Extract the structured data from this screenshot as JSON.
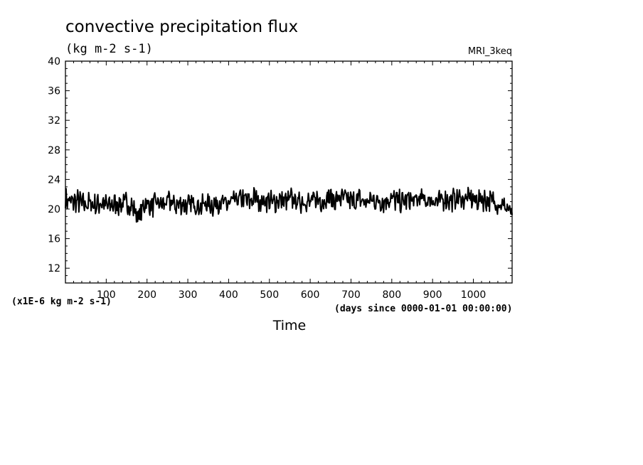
{
  "chart_data": {
    "type": "line",
    "title": "convective precipitation flux",
    "subtitle": "(kg m-2 s-1)",
    "model_label": "MRI_3keq",
    "xlabel": "Time",
    "x_units_note": "(days since 0000-01-01 00:00:00)",
    "y_scale_note": "(x1E-6 kg m-2 s-1)",
    "xlim": [
      0,
      1095
    ],
    "ylim": [
      10,
      40
    ],
    "x_ticks": [
      100,
      200,
      300,
      400,
      500,
      600,
      700,
      800,
      900,
      1000
    ],
    "y_ticks": [
      12,
      16,
      20,
      24,
      28,
      32,
      36,
      40
    ],
    "grid": false,
    "series": [
      {
        "x": [
          0,
          15,
          30,
          45,
          60,
          75,
          90,
          105,
          120,
          135,
          150,
          165,
          180,
          195,
          210,
          225,
          240,
          255,
          270,
          285,
          300,
          315,
          330,
          345,
          360,
          375,
          390,
          405,
          420,
          435,
          450,
          465,
          480,
          495,
          510,
          525,
          540,
          555,
          570,
          585,
          600,
          615,
          630,
          645,
          660,
          675,
          690,
          705,
          720,
          735,
          750,
          765,
          780,
          795,
          810,
          825,
          840,
          855,
          870,
          885,
          900,
          915,
          930,
          945,
          960,
          975,
          990,
          1005,
          1020,
          1035,
          1050,
          1065,
          1080,
          1095
        ],
        "values": [
          21.3,
          20.9,
          21.1,
          20.6,
          20.8,
          20.5,
          20.9,
          20.4,
          20.7,
          20.6,
          20.8,
          20.3,
          18.8,
          20.9,
          20.4,
          20.8,
          20.6,
          21.1,
          20.5,
          20.7,
          20.4,
          20.9,
          20.3,
          20.8,
          20.5,
          21.0,
          20.6,
          20.8,
          21.2,
          21.4,
          21.0,
          21.6,
          20.9,
          21.2,
          20.8,
          21.3,
          21.0,
          21.4,
          20.9,
          21.2,
          20.8,
          21.4,
          21.1,
          21.6,
          21.2,
          21.5,
          21.3,
          21.0,
          21.4,
          20.8,
          21.3,
          21.1,
          21.0,
          21.4,
          21.2,
          20.9,
          21.3,
          21.0,
          21.5,
          21.1,
          21.3,
          20.9,
          21.4,
          21.2,
          21.5,
          21.3,
          21.6,
          21.1,
          21.4,
          21.2,
          21.0,
          20.7,
          20.3,
          19.2
        ]
      }
    ]
  }
}
